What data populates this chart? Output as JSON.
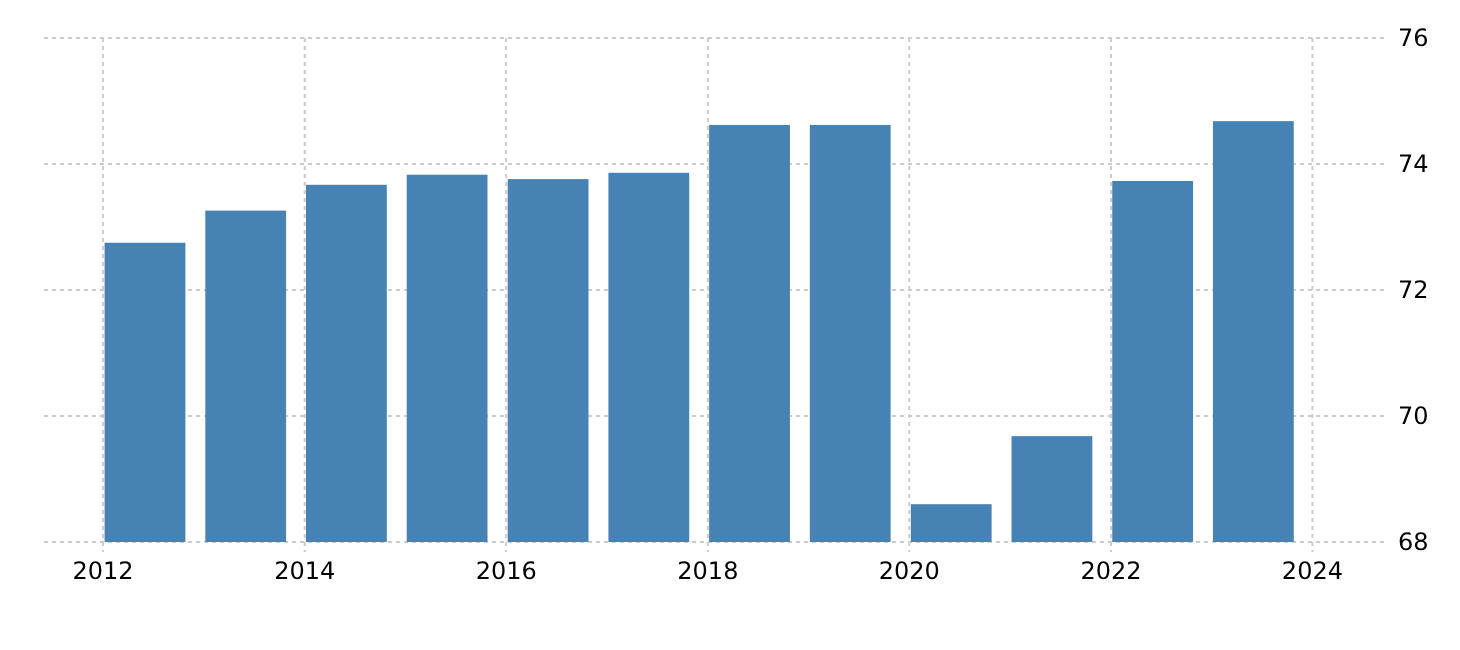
{
  "chart_data": {
    "type": "bar",
    "x": [
      "2012-06",
      "2013-06",
      "2014-06",
      "2015-06",
      "2016-06",
      "2017-06",
      "2018-06",
      "2019-06",
      "2020-06",
      "2021-06",
      "2022-06",
      "2023-06"
    ],
    "values": [
      72.75,
      73.26,
      73.67,
      73.83,
      73.76,
      73.86,
      74.62,
      74.62,
      68.6,
      69.68,
      73.73,
      74.68
    ],
    "color": "#4682b4",
    "xlim": [
      "2011-06",
      "2024-10"
    ],
    "xticks": [
      "2012",
      "2014",
      "2016",
      "2018",
      "2020",
      "2022",
      "2024"
    ],
    "ylim": [
      68,
      76
    ],
    "yticks": [
      68,
      70,
      72,
      74,
      76
    ],
    "grid": true
  }
}
